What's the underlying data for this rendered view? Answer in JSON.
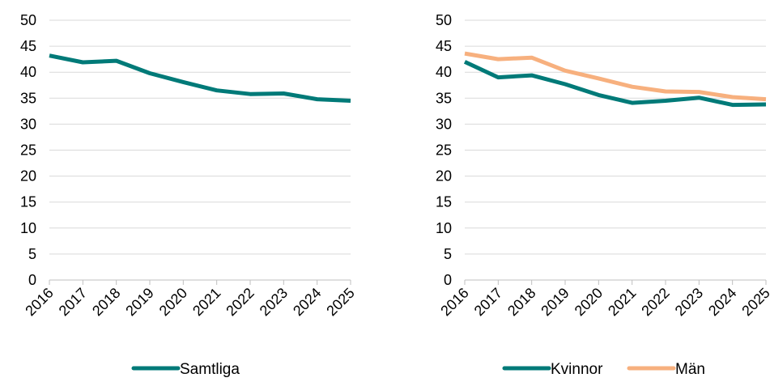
{
  "chart_data": [
    {
      "type": "line",
      "x": [
        "2016",
        "2017",
        "2018",
        "2019",
        "2020",
        "2021",
        "2022",
        "2023",
        "2024",
        "2025"
      ],
      "ylim": [
        0,
        50
      ],
      "yticks": [
        "0",
        "5",
        "10",
        "15",
        "20",
        "25",
        "30",
        "35",
        "40",
        "45",
        "50"
      ],
      "grid": true,
      "legend": "bottom",
      "series": [
        {
          "name": "Samtliga",
          "color": "#007A78",
          "values": [
            43.2,
            41.9,
            42.2,
            39.8,
            38.1,
            36.5,
            35.8,
            35.9,
            34.8,
            34.5
          ]
        }
      ]
    },
    {
      "type": "line",
      "x": [
        "2016",
        "2017",
        "2018",
        "2019",
        "2020",
        "2021",
        "2022",
        "2023",
        "2024",
        "2025"
      ],
      "ylim": [
        0,
        50
      ],
      "yticks": [
        "0",
        "5",
        "10",
        "15",
        "20",
        "25",
        "30",
        "35",
        "40",
        "45",
        "50"
      ],
      "grid": true,
      "legend": "bottom",
      "series": [
        {
          "name": "Kvinnor",
          "color": "#007A78",
          "values": [
            42.0,
            39.0,
            39.4,
            37.7,
            35.6,
            34.1,
            34.5,
            35.1,
            33.7,
            33.8
          ]
        },
        {
          "name": "Män",
          "color": "#F7B07E",
          "values": [
            43.6,
            42.5,
            42.8,
            40.3,
            38.8,
            37.2,
            36.3,
            36.2,
            35.2,
            34.8
          ]
        }
      ]
    }
  ]
}
